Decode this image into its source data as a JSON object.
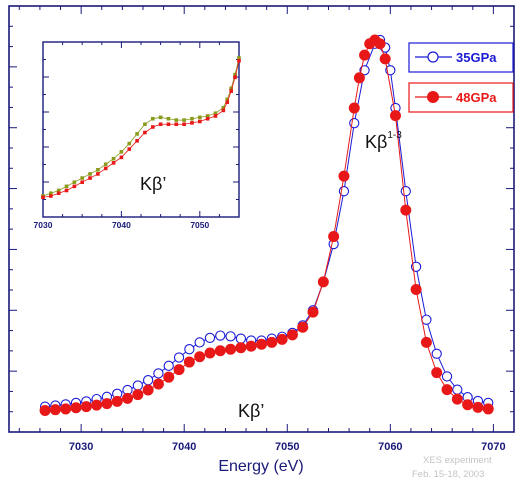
{
  "chart_data": [
    {
      "id": "main",
      "type": "scatter",
      "title": "",
      "xlabel": "Energy (eV)",
      "ylabel": "",
      "xlim": [
        7023,
        7072
      ],
      "ylim": [
        0,
        1.08
      ],
      "x_ticks": [
        7030,
        7040,
        7050,
        7060,
        7070
      ],
      "y_tick_labels": "none",
      "grid": false,
      "legend": "top-right",
      "series": [
        {
          "name": "35GPa",
          "marker": "open-circle",
          "color": "#1a1ad6",
          "x": [
            7026.5,
            7027.5,
            7028.5,
            7029.5,
            7030.5,
            7031.5,
            7032.5,
            7033.5,
            7034.5,
            7035.5,
            7036.5,
            7037.5,
            7038.5,
            7039.5,
            7040.5,
            7041.5,
            7042.5,
            7043.5,
            7044.5,
            7045.5,
            7046.5,
            7047.5,
            7048.5,
            7049.5,
            7050.5,
            7051.5,
            7052.5,
            7053.5,
            7054.5,
            7055.5,
            7056.5,
            7057.5,
            7058.5,
            7059.0,
            7059.5,
            7060.0,
            7060.5,
            7061.5,
            7062.5,
            7063.5,
            7064.5,
            7065.5,
            7066.5,
            7067.5,
            7068.5,
            7069.5
          ],
          "y": [
            0.03,
            0.033,
            0.036,
            0.04,
            0.044,
            0.05,
            0.056,
            0.064,
            0.074,
            0.086,
            0.1,
            0.118,
            0.138,
            0.16,
            0.182,
            0.2,
            0.212,
            0.218,
            0.216,
            0.21,
            0.205,
            0.205,
            0.21,
            0.215,
            0.225,
            0.245,
            0.285,
            0.36,
            0.46,
            0.6,
            0.78,
            0.92,
            0.99,
            1.0,
            0.98,
            0.92,
            0.82,
            0.6,
            0.4,
            0.26,
            0.17,
            0.11,
            0.075,
            0.055,
            0.045,
            0.04
          ]
        },
        {
          "name": "48GPa",
          "marker": "filled-circle",
          "color": "#e81818",
          "x": [
            7026.5,
            7027.5,
            7028.5,
            7029.5,
            7030.5,
            7031.5,
            7032.5,
            7033.5,
            7034.5,
            7035.5,
            7036.5,
            7037.5,
            7038.5,
            7039.5,
            7040.5,
            7041.5,
            7042.5,
            7043.5,
            7044.5,
            7045.5,
            7046.5,
            7047.5,
            7048.5,
            7049.5,
            7050.5,
            7051.5,
            7052.5,
            7053.5,
            7054.5,
            7055.5,
            7056.5,
            7057.0,
            7057.5,
            7058.0,
            7058.5,
            7059.0,
            7059.5,
            7060.5,
            7061.5,
            7062.5,
            7063.5,
            7064.5,
            7065.5,
            7066.5,
            7067.5,
            7068.5,
            7069.5
          ],
          "y": [
            0.02,
            0.022,
            0.024,
            0.027,
            0.03,
            0.034,
            0.038,
            0.044,
            0.052,
            0.062,
            0.074,
            0.09,
            0.108,
            0.128,
            0.148,
            0.162,
            0.172,
            0.178,
            0.182,
            0.186,
            0.19,
            0.195,
            0.2,
            0.208,
            0.22,
            0.24,
            0.28,
            0.36,
            0.48,
            0.64,
            0.82,
            0.9,
            0.96,
            0.99,
            1.0,
            0.99,
            0.95,
            0.8,
            0.55,
            0.34,
            0.2,
            0.12,
            0.075,
            0.05,
            0.035,
            0.028,
            0.024
          ]
        }
      ]
    },
    {
      "id": "inset",
      "type": "scatter",
      "title": "",
      "xlabel": "",
      "ylabel": "",
      "xlim": [
        7030,
        7055
      ],
      "ylim": [
        0,
        1
      ],
      "x_ticks": [
        7030,
        7040,
        7050
      ],
      "y_tick_labels": "none",
      "grid": false,
      "series": [
        {
          "name": "",
          "marker": "small-square",
          "color": "#8a9a1a",
          "x": [
            7030.0,
            7031.0,
            7032.0,
            7033.0,
            7034.0,
            7035.0,
            7036.0,
            7037.0,
            7038.0,
            7039.0,
            7040.0,
            7041.0,
            7042.0,
            7043.0,
            7044.0,
            7045.0,
            7046.0,
            7047.0,
            7048.0,
            7049.0,
            7050.0,
            7051.0,
            7052.0,
            7053.0,
            7053.5,
            7054.0,
            7054.5,
            7055.0
          ],
          "y": [
            0.0,
            0.02,
            0.04,
            0.07,
            0.1,
            0.13,
            0.16,
            0.19,
            0.23,
            0.27,
            0.32,
            0.38,
            0.45,
            0.52,
            0.56,
            0.57,
            0.56,
            0.55,
            0.55,
            0.56,
            0.57,
            0.58,
            0.6,
            0.64,
            0.7,
            0.78,
            0.88,
            1.0
          ]
        },
        {
          "name": "",
          "marker": "small-square",
          "color": "#e81818",
          "x": [
            7030.0,
            7031.0,
            7032.0,
            7033.0,
            7034.0,
            7035.0,
            7036.0,
            7037.0,
            7038.0,
            7039.0,
            7040.0,
            7041.0,
            7042.0,
            7043.0,
            7044.0,
            7045.0,
            7046.0,
            7047.0,
            7048.0,
            7049.0,
            7050.0,
            7051.0,
            7052.0,
            7053.0,
            7053.5,
            7054.0,
            7054.5,
            7055.0
          ],
          "y": [
            -0.01,
            0.0,
            0.02,
            0.04,
            0.07,
            0.1,
            0.13,
            0.16,
            0.2,
            0.24,
            0.28,
            0.34,
            0.4,
            0.46,
            0.5,
            0.52,
            0.52,
            0.52,
            0.52,
            0.53,
            0.54,
            0.56,
            0.58,
            0.62,
            0.68,
            0.76,
            0.86,
            0.98
          ]
        }
      ]
    }
  ],
  "annotations": {
    "kbeta13_main": "Kβ",
    "kbeta13_sup": "1-3",
    "kbeta_prime_main": "Kβ’",
    "kbeta_prime_inset": "Kβ’"
  },
  "credit": {
    "line1": "XES experiment",
    "line2": "Feb. 15-18, 2003"
  },
  "colors": {
    "frame": "#1a1a7a",
    "series_35": "#1a1ad6",
    "series_48": "#e81818",
    "inset_olive": "#8a9a1a"
  }
}
